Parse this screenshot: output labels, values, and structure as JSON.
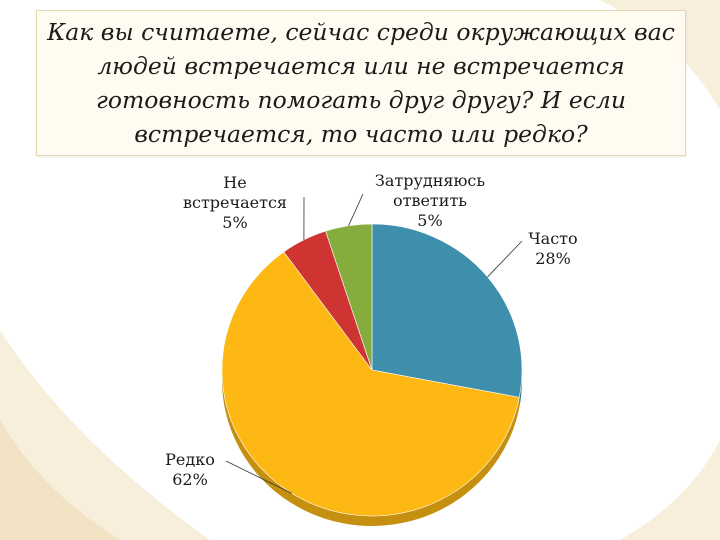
{
  "slide": {
    "title": "Как вы считаете, сейчас среди окружающих вас людей встречается или не встречается готовность помогать друг другу? И если встречается, то часто или редко?"
  },
  "colors": {
    "часто": "#3e8fab",
    "редко": "#fdb813",
    "не_встречается": "#cd3432",
    "затрудняюсь": "#86ac3d",
    "frame": "#e6d7b3",
    "decoration": "#f3e7ce"
  },
  "chart_data": {
    "type": "pie",
    "title": "",
    "slices": [
      {
        "label_lines": [
          "Часто"
        ],
        "value": 28,
        "display": "28%",
        "color": "#3e8fab"
      },
      {
        "label_lines": [
          "Редко"
        ],
        "value": 62,
        "display": "62%",
        "color": "#fdb813"
      },
      {
        "label_lines": [
          "Не",
          "встречается"
        ],
        "value": 5,
        "display": "5%",
        "color": "#cd3432"
      },
      {
        "label_lines": [
          "Затрудняюсь",
          "ответить"
        ],
        "value": 5,
        "display": "5%",
        "color": "#86ac3d"
      }
    ],
    "legend": "none"
  }
}
